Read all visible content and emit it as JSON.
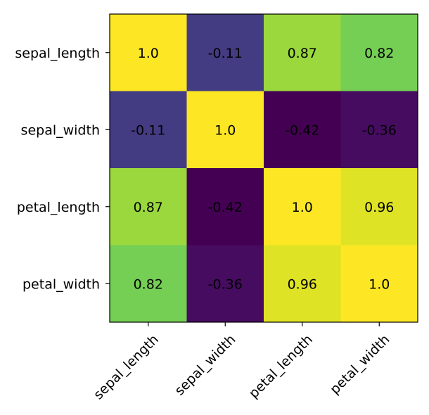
{
  "chart_data": {
    "type": "heatmap",
    "title": "",
    "xlabel": "",
    "ylabel": "",
    "x_categories": [
      "sepal_length",
      "sepal_width",
      "petal_length",
      "petal_width"
    ],
    "y_categories": [
      "sepal_length",
      "sepal_width",
      "petal_length",
      "petal_width"
    ],
    "values": [
      [
        1.0,
        -0.11,
        0.87,
        0.82
      ],
      [
        -0.11,
        1.0,
        -0.42,
        -0.36
      ],
      [
        0.87,
        -0.42,
        1.0,
        0.96
      ],
      [
        0.82,
        -0.36,
        0.96,
        1.0
      ]
    ],
    "cell_labels": [
      [
        "1.0",
        "-0.11",
        "0.87",
        "0.82"
      ],
      [
        "-0.11",
        "1.0",
        "-0.42",
        "-0.36"
      ],
      [
        "0.87",
        "-0.42",
        "1.0",
        "0.96"
      ],
      [
        "0.82",
        "-0.36",
        "0.96",
        "1.0"
      ]
    ],
    "colormap": "viridis",
    "grid": false,
    "legend": "none",
    "x_tick_rotation": "45 degrees"
  }
}
